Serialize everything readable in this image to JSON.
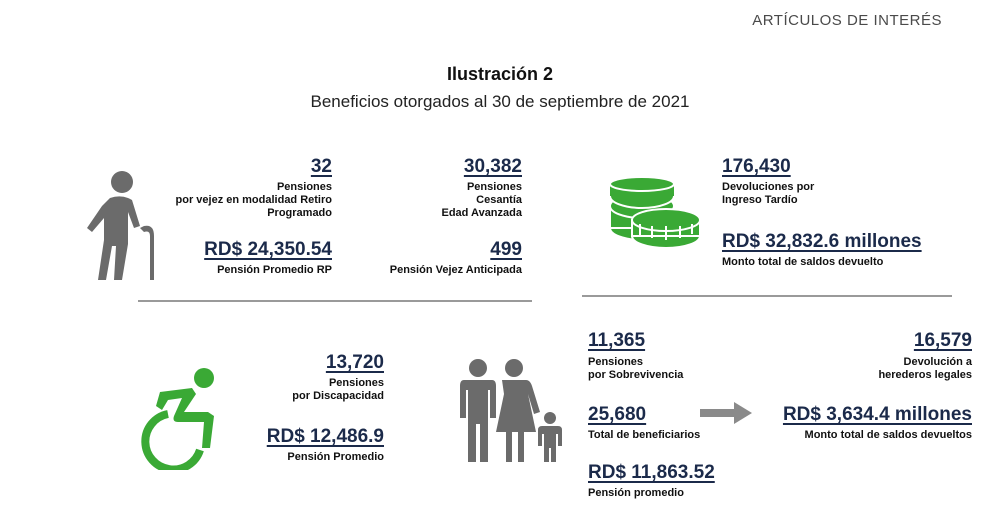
{
  "header_tag": "ARTÍCULOS DE INTERÉS",
  "title": "Ilustración 2",
  "subtitle": "Beneficios otorgados al 30 de septiembre de 2021",
  "colors": {
    "accent_green": "#3aa935",
    "navy": "#1b2a4a",
    "icon_gray": "#6b6b6b",
    "divider": "#9a9a9a"
  },
  "retiro": {
    "icon": "elderly-person-icon",
    "count": "32",
    "count_label_1": "Pensiones",
    "count_label_2": "por vejez en modalidad Retiro",
    "count_label_3": "Programado",
    "amount": "RD$  24,350.54",
    "amount_label": "Pensión Promedio RP"
  },
  "cesantia": {
    "count": "30,382",
    "label_1": "Pensiones",
    "label_2": "Cesantía",
    "label_3": "Edad Avanzada",
    "anticipada_count": "499",
    "anticipada_label": "Pensión Vejez Anticipada"
  },
  "devoluciones": {
    "icon": "coins-icon",
    "count": "176,430",
    "label_1": "Devoluciones por",
    "label_2": "Ingreso Tardío",
    "amount": "RD$ 32,832.6 millones",
    "amount_label": "Monto total de saldos devuelto"
  },
  "discapacidad": {
    "icon": "wheelchair-icon",
    "count": "13,720",
    "label_1": "Pensiones",
    "label_2": "por Discapacidad",
    "amount": "RD$  12,486.9",
    "amount_label": "Pensión Promedio"
  },
  "sobrevivencia": {
    "icon": "family-icon",
    "count": "11,365",
    "label_1": "Pensiones",
    "label_2": "por Sobrevivencia",
    "beneficiarios": "25,680",
    "beneficiarios_label": "Total de beneficiarios",
    "amount": "RD$ 11,863.52",
    "amount_label": "Pensión promedio"
  },
  "herederos": {
    "icon": "arrow-right-icon",
    "count": "16,579",
    "label_1": "Devolución a",
    "label_2": "herederos legales",
    "amount": "RD$ 3,634.4 millones",
    "amount_label": "Monto total de saldos devueltos"
  }
}
